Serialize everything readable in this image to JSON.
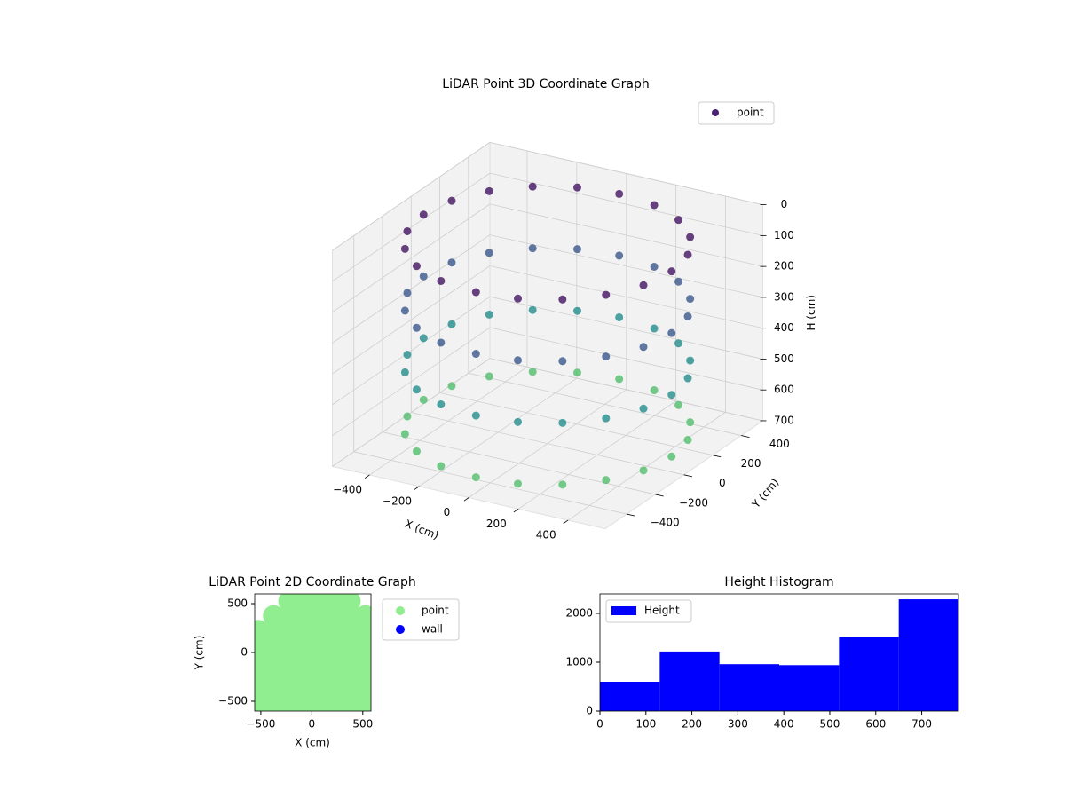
{
  "chart_data": [
    {
      "type": "scatter3d",
      "title": "LiDAR Point 3D Coordinate Graph",
      "xlabel": "X (cm)",
      "ylabel": "Y (cm)",
      "zlabel": "H (cm)",
      "xlim": [
        -550,
        550
      ],
      "ylim": [
        -550,
        550
      ],
      "zlim": [
        700,
        0
      ],
      "xticks": [
        {
          "value": -400,
          "label": "−400"
        },
        {
          "value": -200,
          "label": "−200"
        },
        0,
        200,
        400
      ],
      "yticks": [
        {
          "value": -400,
          "label": "−400"
        },
        {
          "value": -200,
          "label": "−200"
        },
        0,
        200,
        400
      ],
      "zticks": [
        0,
        100,
        200,
        300,
        400,
        500,
        600,
        700
      ],
      "legend": "upper right",
      "series": [
        {
          "name": "point",
          "color": "#482173",
          "colormap": [
            "#5ec962",
            "#21918c",
            "#3b528b",
            "#440154"
          ],
          "x": [
            500,
            476,
            405,
            294,
            155,
            0,
            -155,
            -294,
            -405,
            -476,
            -500,
            -476,
            -405,
            -294,
            -155,
            0,
            155,
            294,
            405,
            476,
            500,
            476,
            405,
            294,
            155,
            0,
            -155,
            -294,
            -405,
            -476,
            -500,
            -476,
            -405,
            -294,
            -155,
            0,
            155,
            294,
            405,
            476,
            500,
            476,
            405,
            294,
            155,
            0,
            -155,
            -294,
            -405,
            -476,
            -500,
            -476,
            -405,
            -294,
            -155,
            0,
            155,
            294,
            405,
            476,
            500,
            476,
            405,
            294,
            155,
            0,
            -155,
            -294,
            -405,
            -476,
            -500,
            -476,
            -405,
            -294,
            -155,
            0,
            155,
            294,
            405,
            476
          ],
          "y": [
            0,
            155,
            294,
            405,
            476,
            500,
            476,
            405,
            294,
            155,
            0,
            -155,
            -294,
            -405,
            -476,
            -500,
            -476,
            -405,
            -294,
            -155,
            0,
            155,
            294,
            405,
            476,
            500,
            476,
            405,
            294,
            155,
            0,
            -155,
            -294,
            -405,
            -476,
            -500,
            -476,
            -405,
            -294,
            -155,
            0,
            155,
            294,
            405,
            476,
            500,
            476,
            405,
            294,
            155,
            0,
            -155,
            -294,
            -405,
            -476,
            -500,
            -476,
            -405,
            -294,
            -155,
            0,
            155,
            294,
            405,
            476,
            500,
            476,
            405,
            294,
            155,
            0,
            -155,
            -294,
            -405,
            -476,
            -500,
            -476,
            -405,
            -294,
            -155
          ],
          "z": [
            50,
            50,
            50,
            50,
            50,
            50,
            50,
            50,
            50,
            50,
            50,
            50,
            50,
            50,
            50,
            50,
            50,
            50,
            50,
            50,
            250,
            250,
            250,
            250,
            250,
            250,
            250,
            250,
            250,
            250,
            250,
            250,
            250,
            250,
            250,
            250,
            250,
            250,
            250,
            250,
            450,
            450,
            450,
            450,
            450,
            450,
            450,
            450,
            450,
            450,
            450,
            450,
            450,
            450,
            450,
            450,
            450,
            450,
            450,
            450,
            650,
            650,
            650,
            650,
            650,
            650,
            650,
            650,
            650,
            650,
            650,
            650,
            650,
            650,
            650,
            650,
            650,
            650,
            650,
            650
          ]
        }
      ]
    },
    {
      "type": "scatter",
      "title": "LiDAR Point 2D Coordinate Graph",
      "xlabel": "X (cm)",
      "ylabel": "Y (cm)",
      "xlim": [
        -560,
        580
      ],
      "ylim": [
        -600,
        600
      ],
      "xticks": [
        {
          "value": -500,
          "label": "−500"
        },
        0,
        500
      ],
      "yticks": [
        {
          "value": -500,
          "label": "−500"
        },
        0,
        500
      ],
      "legend": "outside right",
      "series": [
        {
          "name": "point",
          "color": "#90ee90",
          "x": [
            -525,
            -375,
            -225,
            -75,
            75,
            225,
            375,
            525,
            -525,
            -375,
            -225,
            -75,
            75,
            225,
            375,
            525,
            -525,
            -375,
            -225,
            -75,
            75,
            225,
            375,
            525,
            -525,
            -375,
            -225,
            -75,
            75,
            225,
            375,
            525,
            -525,
            -375,
            -225,
            -75,
            75,
            225,
            375,
            525,
            -525,
            -375,
            -225,
            -75,
            75,
            225,
            375,
            525,
            -375,
            -225,
            -75,
            75,
            225,
            375,
            525,
            -225,
            -75,
            75,
            225,
            375
          ],
          "y": [
            -525,
            -525,
            -525,
            -525,
            -525,
            -525,
            -525,
            -525,
            -375,
            -375,
            -375,
            -375,
            -375,
            -375,
            -375,
            -375,
            -225,
            -225,
            -225,
            -225,
            -225,
            -225,
            -225,
            -225,
            -75,
            -75,
            -75,
            -75,
            -75,
            -75,
            -75,
            -75,
            75,
            75,
            75,
            75,
            75,
            75,
            75,
            75,
            225,
            225,
            225,
            225,
            225,
            225,
            225,
            225,
            375,
            375,
            375,
            375,
            375,
            375,
            375,
            525,
            525,
            525,
            525,
            525
          ]
        },
        {
          "name": "wall",
          "color": "#0000ff",
          "x": [],
          "y": []
        }
      ]
    },
    {
      "type": "histogram",
      "title": "Height Histogram",
      "bins": [
        0,
        130,
        260,
        390,
        520,
        650,
        780
      ],
      "xlim": [
        0,
        780
      ],
      "ylim": [
        0,
        2400
      ],
      "xticks": [
        0,
        100,
        200,
        300,
        400,
        500,
        600,
        700
      ],
      "yticks": [
        0,
        1000,
        2000
      ],
      "legend": "upper left",
      "series": [
        {
          "name": "Height",
          "color": "#0000ff",
          "values": [
            600,
            1220,
            960,
            940,
            1520,
            2290
          ]
        }
      ]
    }
  ]
}
